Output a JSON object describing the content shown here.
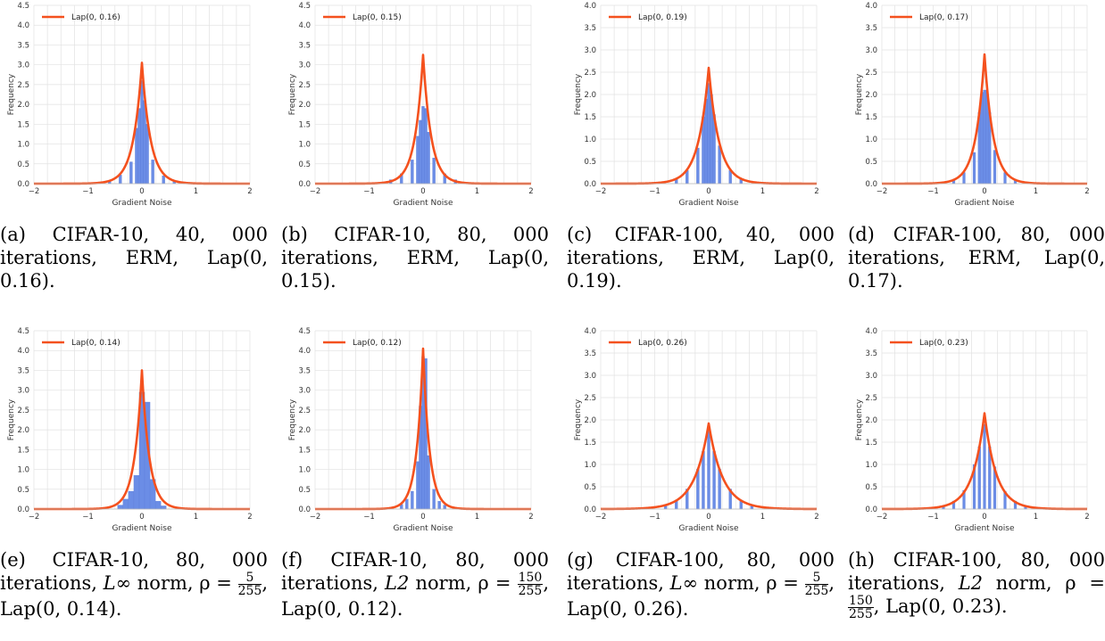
{
  "chart_data": [
    {
      "type": "bar",
      "subplot": "(a)",
      "caption": "(a) CIFAR-10, 40, 000 iterations, ERM, Lap(0, 0.16).",
      "xlabel": "Gradient Noise",
      "ylabel": "Frequency",
      "xlim": [
        -2,
        2
      ],
      "ylim": [
        0,
        4.5
      ],
      "xticks": [
        "−2",
        "−1",
        "0",
        "1",
        "2"
      ],
      "yticks": [
        "0.0",
        "0.5",
        "1.0",
        "1.5",
        "2.0",
        "2.5",
        "3.0",
        "3.5",
        "4.0",
        "4.5"
      ],
      "grid": true,
      "legend": "top-left",
      "series": [
        {
          "name": "Lap(0, 0.16)",
          "type": "line",
          "scale": 0.16,
          "peak": 3.05,
          "color": "#f4511e"
        },
        {
          "type": "histogram",
          "bin_width": 0.05,
          "values": [
            {
              "x": -0.6,
              "y": 0.08
            },
            {
              "x": -0.4,
              "y": 0.22
            },
            {
              "x": -0.2,
              "y": 0.55
            },
            {
              "x": -0.1,
              "y": 1.4
            },
            {
              "x": -0.05,
              "y": 1.9
            },
            {
              "x": 0,
              "y": 2.6
            },
            {
              "x": 0.05,
              "y": 2.1
            },
            {
              "x": 0.1,
              "y": 1.5
            },
            {
              "x": 0.2,
              "y": 0.6
            },
            {
              "x": 0.4,
              "y": 0.2
            },
            {
              "x": 0.6,
              "y": 0.08
            }
          ],
          "color": "#6b8de6"
        }
      ]
    },
    {
      "type": "bar",
      "subplot": "(b)",
      "caption": "(b) CIFAR-10, 80, 000 iterations, ERM, Lap(0, 0.15).",
      "xlabel": "Gradient Noise",
      "ylabel": "Frequency",
      "xlim": [
        -2,
        2
      ],
      "ylim": [
        0,
        4.5
      ],
      "xticks": [
        "−2",
        "−1",
        "0",
        "1",
        "2"
      ],
      "yticks": [
        "0.0",
        "0.5",
        "1.0",
        "1.5",
        "2.0",
        "2.5",
        "3.0",
        "3.5",
        "4.0",
        "4.5"
      ],
      "grid": true,
      "legend": "top-left",
      "series": [
        {
          "name": "Lap(0, 0.15)",
          "type": "line",
          "scale": 0.15,
          "peak": 3.25,
          "color": "#f4511e"
        },
        {
          "type": "histogram",
          "bin_width": 0.05,
          "values": [
            {
              "x": -0.6,
              "y": 0.1
            },
            {
              "x": -0.4,
              "y": 0.25
            },
            {
              "x": -0.2,
              "y": 0.6
            },
            {
              "x": -0.1,
              "y": 1.2
            },
            {
              "x": -0.05,
              "y": 1.6
            },
            {
              "x": 0,
              "y": 1.95
            },
            {
              "x": 0.05,
              "y": 1.9
            },
            {
              "x": 0.1,
              "y": 1.3
            },
            {
              "x": 0.2,
              "y": 0.65
            },
            {
              "x": 0.4,
              "y": 0.25
            },
            {
              "x": 0.6,
              "y": 0.1
            }
          ],
          "color": "#6b8de6"
        }
      ]
    },
    {
      "type": "bar",
      "subplot": "(c)",
      "caption": "(c) CIFAR-100, 40, 000 iterations, ERM, Lap(0, 0.19).",
      "xlabel": "Gradient Noise",
      "ylabel": "Frequency",
      "xlim": [
        -2,
        2
      ],
      "ylim": [
        0,
        4.0
      ],
      "xticks": [
        "−2",
        "−1",
        "0",
        "1",
        "2"
      ],
      "yticks": [
        "0.0",
        "0.5",
        "1.0",
        "1.5",
        "2.0",
        "2.5",
        "3.0",
        "3.5",
        "4.0"
      ],
      "grid": true,
      "legend": "top-left",
      "series": [
        {
          "name": "Lap(0, 0.19)",
          "type": "line",
          "scale": 0.19,
          "peak": 2.6,
          "color": "#f4511e"
        },
        {
          "type": "histogram",
          "bin_width": 0.05,
          "values": [
            {
              "x": -0.6,
              "y": 0.1
            },
            {
              "x": -0.4,
              "y": 0.3
            },
            {
              "x": -0.2,
              "y": 0.8
            },
            {
              "x": -0.1,
              "y": 1.5
            },
            {
              "x": -0.05,
              "y": 1.9
            },
            {
              "x": 0,
              "y": 2.25
            },
            {
              "x": 0.05,
              "y": 2.0
            },
            {
              "x": 0.1,
              "y": 1.55
            },
            {
              "x": 0.2,
              "y": 0.85
            },
            {
              "x": 0.4,
              "y": 0.3
            },
            {
              "x": 0.6,
              "y": 0.1
            }
          ],
          "color": "#6b8de6"
        }
      ]
    },
    {
      "type": "bar",
      "subplot": "(d)",
      "caption": "(d) CIFAR-100, 80, 000 iterations, ERM, Lap(0, 0.17).",
      "xlabel": "Gradient Noise",
      "ylabel": "Frequency",
      "xlim": [
        -2,
        2
      ],
      "ylim": [
        0,
        4.0
      ],
      "xticks": [
        "−2",
        "−1",
        "0",
        "1",
        "2"
      ],
      "yticks": [
        "0.0",
        "0.5",
        "1.0",
        "1.5",
        "2.0",
        "2.5",
        "3.0",
        "3.5",
        "4.0"
      ],
      "grid": true,
      "legend": "top-left",
      "series": [
        {
          "name": "Lap(0, 0.17)",
          "type": "line",
          "scale": 0.17,
          "peak": 2.9,
          "color": "#f4511e"
        },
        {
          "type": "histogram",
          "bin_width": 0.05,
          "values": [
            {
              "x": -0.6,
              "y": 0.08
            },
            {
              "x": -0.4,
              "y": 0.25
            },
            {
              "x": -0.2,
              "y": 0.7
            },
            {
              "x": -0.1,
              "y": 1.6
            },
            {
              "x": -0.05,
              "y": 2.05
            },
            {
              "x": 0,
              "y": 2.1
            },
            {
              "x": 0.05,
              "y": 2.1
            },
            {
              "x": 0.1,
              "y": 1.6
            },
            {
              "x": 0.2,
              "y": 0.75
            },
            {
              "x": 0.4,
              "y": 0.25
            },
            {
              "x": 0.6,
              "y": 0.08
            }
          ],
          "color": "#6b8de6"
        }
      ]
    },
    {
      "type": "bar",
      "subplot": "(e)",
      "caption": "(e) CIFAR-10, 80, 000 iterations, L∞ norm, ρ = 5/255, Lap(0, 0.14).",
      "xlabel": "Gradient Noise",
      "ylabel": "Frequency",
      "xlim": [
        -2,
        2
      ],
      "ylim": [
        0,
        4.5
      ],
      "xticks": [
        "−2",
        "−1",
        "0",
        "1",
        "2"
      ],
      "yticks": [
        "0.0",
        "0.5",
        "1.0",
        "1.5",
        "2.0",
        "2.5",
        "3.0",
        "3.5",
        "4.0",
        "4.5"
      ],
      "grid": true,
      "legend": "top-left",
      "series": [
        {
          "name": "Lap(0, 0.14)",
          "type": "line",
          "scale": 0.14,
          "peak": 3.5,
          "color": "#f4511e"
        },
        {
          "type": "histogram",
          "bin_width": 0.1,
          "values": [
            {
              "x": -0.4,
              "y": 0.1
            },
            {
              "x": -0.3,
              "y": 0.25
            },
            {
              "x": -0.2,
              "y": 0.45
            },
            {
              "x": -0.1,
              "y": 0.85
            },
            {
              "x": 0,
              "y": 2.95
            },
            {
              "x": 0.1,
              "y": 2.7
            },
            {
              "x": 0.2,
              "y": 0.75
            },
            {
              "x": 0.3,
              "y": 0.2
            },
            {
              "x": 0.4,
              "y": 0.08
            }
          ],
          "color": "#6b8de6"
        }
      ]
    },
    {
      "type": "bar",
      "subplot": "(f)",
      "caption": "(f) CIFAR-10, 80, 000 iterations, L2 norm, ρ = 150/255, Lap(0, 0.12).",
      "xlabel": "Gradient Noise",
      "ylabel": "Frequency",
      "xlim": [
        -2,
        2
      ],
      "ylim": [
        0,
        4.5
      ],
      "xticks": [
        "−2",
        "−1",
        "0",
        "1",
        "2"
      ],
      "yticks": [
        "0.0",
        "0.5",
        "1.0",
        "1.5",
        "2.0",
        "2.5",
        "3.0",
        "3.5",
        "4.0",
        "4.5"
      ],
      "grid": true,
      "legend": "top-left",
      "series": [
        {
          "name": "Lap(0, 0.12)",
          "type": "line",
          "scale": 0.12,
          "peak": 4.05,
          "color": "#f4511e"
        },
        {
          "type": "histogram",
          "bin_width": 0.05,
          "values": [
            {
              "x": -0.4,
              "y": 0.12
            },
            {
              "x": -0.3,
              "y": 0.25
            },
            {
              "x": -0.2,
              "y": 0.45
            },
            {
              "x": -0.1,
              "y": 1.2
            },
            {
              "x": -0.05,
              "y": 2.6
            },
            {
              "x": 0,
              "y": 3.85
            },
            {
              "x": 0.05,
              "y": 3.8
            },
            {
              "x": 0.1,
              "y": 1.35
            },
            {
              "x": 0.2,
              "y": 0.5
            },
            {
              "x": 0.3,
              "y": 0.2
            },
            {
              "x": 0.4,
              "y": 0.1
            }
          ],
          "color": "#6b8de6"
        }
      ]
    },
    {
      "type": "bar",
      "subplot": "(g)",
      "caption": "(g) CIFAR-100, 80, 000 iterations, L∞ norm, ρ = 5/255, Lap(0, 0.26).",
      "xlabel": "Gradient Noise",
      "ylabel": "Frequency",
      "xlim": [
        -2,
        2
      ],
      "ylim": [
        0,
        4.0
      ],
      "xticks": [
        "−2",
        "−1",
        "0",
        "1",
        "2"
      ],
      "yticks": [
        "0.0",
        "0.5",
        "1.0",
        "1.5",
        "2.0",
        "2.5",
        "3.0",
        "3.5",
        "4.0"
      ],
      "grid": true,
      "legend": "top-left",
      "series": [
        {
          "name": "Lap(0, 0.26)",
          "type": "line",
          "scale": 0.26,
          "peak": 1.92,
          "color": "#f4511e"
        },
        {
          "type": "histogram",
          "bin_width": 0.05,
          "values": [
            {
              "x": -0.8,
              "y": 0.09
            },
            {
              "x": -0.6,
              "y": 0.2
            },
            {
              "x": -0.4,
              "y": 0.45
            },
            {
              "x": -0.2,
              "y": 0.9
            },
            {
              "x": -0.1,
              "y": 1.3
            },
            {
              "x": 0,
              "y": 1.75
            },
            {
              "x": 0.1,
              "y": 1.3
            },
            {
              "x": 0.2,
              "y": 0.9
            },
            {
              "x": 0.4,
              "y": 0.45
            },
            {
              "x": 0.6,
              "y": 0.2
            },
            {
              "x": 0.8,
              "y": 0.09
            }
          ],
          "color": "#6b8de6"
        }
      ]
    },
    {
      "type": "bar",
      "subplot": "(h)",
      "caption": "(h) CIFAR-100, 80, 000 iterations, L2 norm, ρ = 150/255, Lap(0, 0.23).",
      "xlabel": "Gradient Noise",
      "ylabel": "Frequency",
      "xlim": [
        -2,
        2
      ],
      "ylim": [
        0,
        4.0
      ],
      "xticks": [
        "−2",
        "−1",
        "0",
        "1",
        "2"
      ],
      "yticks": [
        "0.0",
        "0.5",
        "1.0",
        "1.5",
        "2.0",
        "2.5",
        "3.0",
        "3.5",
        "4.0"
      ],
      "grid": true,
      "legend": "top-left",
      "series": [
        {
          "name": "Lap(0, 0.23)",
          "type": "line",
          "scale": 0.23,
          "peak": 2.15,
          "color": "#f4511e"
        },
        {
          "type": "histogram",
          "bin_width": 0.05,
          "values": [
            {
              "x": -0.8,
              "y": 0.08
            },
            {
              "x": -0.6,
              "y": 0.18
            },
            {
              "x": -0.4,
              "y": 0.42
            },
            {
              "x": -0.2,
              "y": 1.0
            },
            {
              "x": -0.1,
              "y": 1.4
            },
            {
              "x": 0,
              "y": 1.9
            },
            {
              "x": 0.1,
              "y": 1.4
            },
            {
              "x": 0.2,
              "y": 0.95
            },
            {
              "x": 0.4,
              "y": 0.4
            },
            {
              "x": 0.6,
              "y": 0.18
            },
            {
              "x": 0.8,
              "y": 0.08
            }
          ],
          "color": "#6b8de6"
        }
      ]
    }
  ],
  "captions": {
    "a": {
      "pre": "(a) CIFAR-10, ",
      "num": "40, 000",
      "post": " iterations, ERM, ",
      "lap": "Lap(0, 0.16)",
      "end": "."
    },
    "b": {
      "pre": "(b) CIFAR-10, ",
      "num": "80, 000",
      "post": " iterations, ERM, ",
      "lap": "Lap(0, 0.15)",
      "end": "."
    },
    "c": {
      "pre": "(c) CIFAR-100, ",
      "num": "40, 000",
      "post": " iterations, ERM, ",
      "lap": "Lap(0, 0.19)",
      "end": "."
    },
    "d": {
      "pre": "(d) CIFAR-100, ",
      "num": "80, 000",
      "post": " iterations, ERM, ",
      "lap": "Lap(0, 0.17)",
      "end": "."
    },
    "e": {
      "pre": "(e) CIFAR-10, ",
      "num": "80, 000",
      "mid": " iterations, ",
      "norm": "L∞",
      "post": " norm, ρ = ",
      "frac_num": "5",
      "frac_den": "255",
      "lap": "Lap(0, 0.14)",
      "end": "."
    },
    "f": {
      "pre": "(f) CIFAR-10, ",
      "num": "80, 000",
      "mid": " iterations, ",
      "norm": "L2",
      "post": " norm, ρ = ",
      "frac_num": "150",
      "frac_den": "255",
      "lap": "Lap(0, 0.12)",
      "end": "."
    },
    "g": {
      "pre": "(g) CIFAR-100, ",
      "num": "80, 000",
      "mid": " iterations, ",
      "norm": "L∞",
      "post": " norm, ρ = ",
      "frac_num": "5",
      "frac_den": "255",
      "lap": "Lap(0, 0.26)",
      "end": "."
    },
    "h": {
      "pre": "(h) CIFAR-100, ",
      "num": "80, 000",
      "mid": " iterations, ",
      "norm": "L2",
      "post": " norm, ρ = ",
      "frac_num": "150",
      "frac_den": "255",
      "lap": "Lap(0, 0.23)",
      "end": "."
    }
  }
}
